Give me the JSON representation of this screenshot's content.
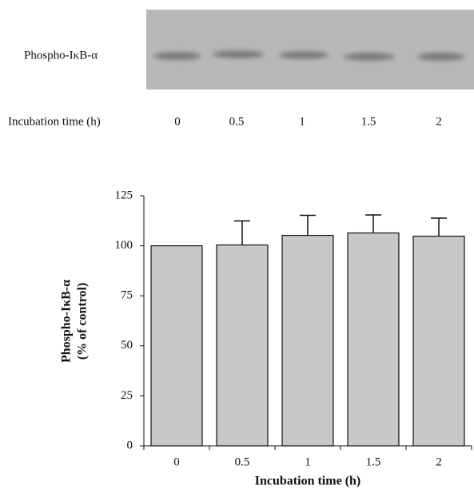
{
  "blot": {
    "label": "Phospho-IκB-α",
    "x_label": "Incubation time (h)",
    "lanes": [
      "0",
      "0.5",
      "1",
      "1.5",
      "2"
    ]
  },
  "chart_data": {
    "type": "bar",
    "y_label": [
      "Phospho-IκB-α",
      "(% of control)"
    ],
    "x_label": "Incubation time (h)",
    "categories": [
      "0",
      "0.5",
      "1",
      "1.5",
      "2"
    ],
    "series": [
      {
        "color": "#c8c8c8",
        "values": [
          100,
          100.4,
          105.2,
          106.4,
          104.8
        ],
        "errors": [
          null,
          12,
          10,
          9,
          9
        ]
      }
    ],
    "ylim": [
      0,
      125
    ],
    "yticks": [
      0,
      25,
      50,
      75,
      100,
      125
    ]
  }
}
